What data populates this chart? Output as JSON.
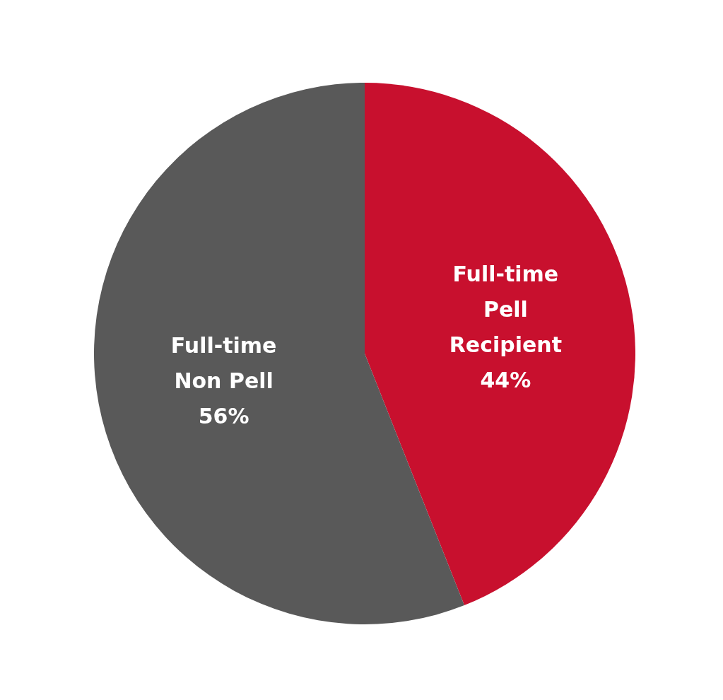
{
  "chart_data": {
    "type": "pie",
    "categories": [
      "Full-time Pell Recipient",
      "Full-time Non Pell"
    ],
    "values": [
      44,
      56
    ],
    "colors": [
      "#c8102e",
      "#595959"
    ],
    "value_labels": [
      "44%",
      "56%"
    ],
    "legend": false
  }
}
